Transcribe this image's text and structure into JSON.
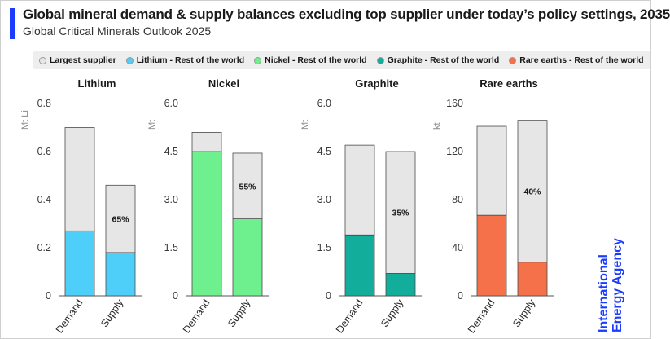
{
  "title": "Global mineral demand & supply balances excluding top supplier under today’s policy settings, 2035",
  "subtitle": "Global Critical Minerals Outlook 2025",
  "legend": [
    {
      "label": "Largest supplier",
      "color": "#e6e6e6"
    },
    {
      "label": "Lithium - Rest of the world",
      "color": "#4dcffa"
    },
    {
      "label": "Nickel - Rest of the world",
      "color": "#6ef08e"
    },
    {
      "label": "Graphite - Rest of the world",
      "color": "#13ad9c"
    },
    {
      "label": "Rare earths - Rest of the world",
      "color": "#f5714a"
    }
  ],
  "logo": {
    "line1": "International",
    "line2": "Energy Agency"
  },
  "colors": {
    "largest_supplier": "#e6e6e6",
    "bar_stroke": "#4a4a4a"
  },
  "chart_data": [
    {
      "type": "bar",
      "stacked": true,
      "title": "Lithium",
      "ylabel": "Mt Li",
      "ylim": [
        0,
        0.8
      ],
      "ticks": [
        "0",
        "0.2",
        "0.4",
        "0.6",
        "0.8"
      ],
      "tick_values": [
        0,
        0.2,
        0.4,
        0.6,
        0.8
      ],
      "categories": [
        "Demand",
        "Supply"
      ],
      "series": [
        {
          "name": "Lithium - Rest of the world",
          "values": [
            0.27,
            0.18
          ],
          "color": "#4dcffa"
        },
        {
          "name": "Largest supplier",
          "values": [
            0.43,
            0.28
          ],
          "color": "#e6e6e6"
        }
      ],
      "annotations": [
        {
          "category": "Supply",
          "text": "65%"
        }
      ]
    },
    {
      "type": "bar",
      "stacked": true,
      "title": "Nickel",
      "ylabel": "Mt",
      "ylim": [
        0,
        6.0
      ],
      "ticks": [
        "0",
        "1.5",
        "3.0",
        "4.5",
        "6.0"
      ],
      "tick_values": [
        0,
        1.5,
        3.0,
        4.5,
        6.0
      ],
      "categories": [
        "Demand",
        "Supply"
      ],
      "series": [
        {
          "name": "Nickel - Rest of the world",
          "values": [
            4.5,
            2.4
          ],
          "color": "#6ef08e"
        },
        {
          "name": "Largest supplier",
          "values": [
            0.6,
            2.05
          ],
          "color": "#e6e6e6"
        }
      ],
      "annotations": [
        {
          "category": "Supply",
          "text": "55%"
        }
      ]
    },
    {
      "type": "bar",
      "stacked": true,
      "title": "Graphite",
      "ylabel": "Mt",
      "ylim": [
        0,
        6.0
      ],
      "ticks": [
        "0",
        "1.5",
        "3.0",
        "4.5",
        "6.0"
      ],
      "tick_values": [
        0,
        1.5,
        3.0,
        4.5,
        6.0
      ],
      "categories": [
        "Demand",
        "Supply"
      ],
      "series": [
        {
          "name": "Graphite - Rest of the world",
          "values": [
            1.9,
            0.7
          ],
          "color": "#13ad9c"
        },
        {
          "name": "Largest supplier",
          "values": [
            2.8,
            3.8
          ],
          "color": "#e6e6e6"
        }
      ],
      "annotations": [
        {
          "category": "Supply",
          "text": "35%"
        }
      ]
    },
    {
      "type": "bar",
      "stacked": true,
      "title": "Rare earths",
      "ylabel": "kt",
      "ylim": [
        0,
        160
      ],
      "ticks": [
        "0",
        "40",
        "80",
        "120",
        "160"
      ],
      "tick_values": [
        0,
        40,
        80,
        120,
        160
      ],
      "categories": [
        "Demand",
        "Supply"
      ],
      "series": [
        {
          "name": "Rare earths - Rest of the world",
          "values": [
            67,
            28
          ],
          "color": "#f5714a"
        },
        {
          "name": "Largest supplier",
          "values": [
            74,
            118
          ],
          "color": "#e6e6e6"
        }
      ],
      "annotations": [
        {
          "category": "Supply",
          "text": "40%"
        }
      ]
    }
  ]
}
